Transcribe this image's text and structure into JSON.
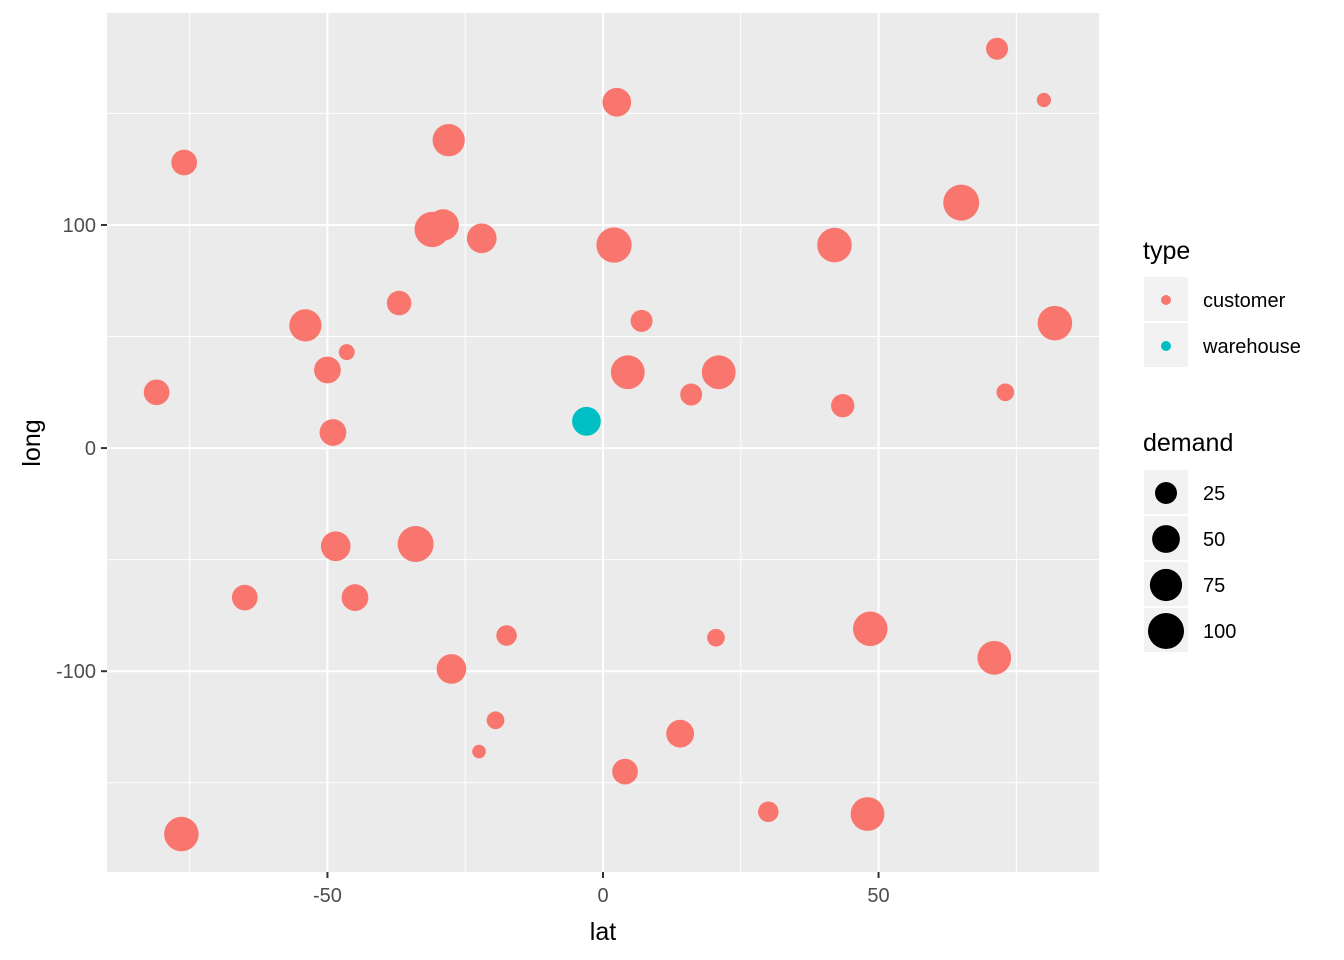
{
  "chart_data": {
    "type": "scatter",
    "xlabel": "lat",
    "ylabel": "long",
    "xlim": [
      -90,
      90
    ],
    "ylim": [
      -190,
      195
    ],
    "x_ticks": [
      -50,
      0,
      50
    ],
    "x_tick_labels": [
      "-50",
      "0",
      "50"
    ],
    "y_ticks": [
      -100,
      0,
      100
    ],
    "y_tick_labels": [
      "-100",
      "0",
      "100"
    ],
    "grid": true,
    "legend_position": "right",
    "colors": {
      "customer": "#F8766D",
      "warehouse": "#00BFC4",
      "panel": "#EBEBEB",
      "grid": "#FFFFFF"
    },
    "legends": {
      "color": {
        "title": "type",
        "entries": [
          {
            "label": "customer",
            "color": "#F8766D"
          },
          {
            "label": "warehouse",
            "color": "#00BFC4"
          }
        ]
      },
      "size": {
        "title": "demand",
        "entries": [
          {
            "label": "25",
            "value": 25
          },
          {
            "label": "50",
            "value": 50
          },
          {
            "label": "75",
            "value": 75
          },
          {
            "label": "100",
            "value": 100
          }
        ]
      }
    },
    "series": [
      {
        "name": "customer",
        "color": "#F8766D",
        "points": [
          {
            "x": 71.5,
            "y": 179,
            "demand": 25
          },
          {
            "x": 80,
            "y": 156,
            "demand": 5
          },
          {
            "x": 2.5,
            "y": 155,
            "demand": 55
          },
          {
            "x": -28,
            "y": 138,
            "demand": 75
          },
          {
            "x": -76,
            "y": 128,
            "demand": 40
          },
          {
            "x": 65,
            "y": 110,
            "demand": 100
          },
          {
            "x": -31,
            "y": 98,
            "demand": 95
          },
          {
            "x": -29,
            "y": 100,
            "demand": 70
          },
          {
            "x": -22,
            "y": 94,
            "demand": 60
          },
          {
            "x": 2,
            "y": 91,
            "demand": 95
          },
          {
            "x": 42,
            "y": 91,
            "demand": 90
          },
          {
            "x": -37,
            "y": 65,
            "demand": 35
          },
          {
            "x": 7,
            "y": 57,
            "demand": 25
          },
          {
            "x": 82,
            "y": 56,
            "demand": 90
          },
          {
            "x": -54,
            "y": 55,
            "demand": 75
          },
          {
            "x": -46.5,
            "y": 43,
            "demand": 8
          },
          {
            "x": -50,
            "y": 35,
            "demand": 45
          },
          {
            "x": 4.5,
            "y": 34,
            "demand": 85
          },
          {
            "x": 21,
            "y": 34,
            "demand": 85
          },
          {
            "x": -81,
            "y": 25,
            "demand": 40
          },
          {
            "x": 16,
            "y": 24,
            "demand": 25
          },
          {
            "x": 73,
            "y": 25,
            "demand": 12
          },
          {
            "x": 43.5,
            "y": 19,
            "demand": 30
          },
          {
            "x": -49,
            "y": 7,
            "demand": 45
          },
          {
            "x": -48.5,
            "y": -44,
            "demand": 60
          },
          {
            "x": -34,
            "y": -43,
            "demand": 100
          },
          {
            "x": -65,
            "y": -67,
            "demand": 40
          },
          {
            "x": -45,
            "y": -67,
            "demand": 45
          },
          {
            "x": 48.5,
            "y": -81,
            "demand": 90
          },
          {
            "x": -17.5,
            "y": -84,
            "demand": 20
          },
          {
            "x": 20.5,
            "y": -85,
            "demand": 12
          },
          {
            "x": 71,
            "y": -94,
            "demand": 85
          },
          {
            "x": -27.5,
            "y": -99,
            "demand": 60
          },
          {
            "x": -19.5,
            "y": -122,
            "demand": 12
          },
          {
            "x": 14,
            "y": -128,
            "demand": 50
          },
          {
            "x": -22.5,
            "y": -136,
            "demand": 4
          },
          {
            "x": 4,
            "y": -145,
            "demand": 40
          },
          {
            "x": 30,
            "y": -163,
            "demand": 20
          },
          {
            "x": 48,
            "y": -164,
            "demand": 85
          },
          {
            "x": -76.5,
            "y": -173,
            "demand": 90
          }
        ]
      },
      {
        "name": "warehouse",
        "color": "#00BFC4",
        "points": [
          {
            "x": -3,
            "y": 12,
            "demand": 55
          }
        ]
      }
    ]
  }
}
